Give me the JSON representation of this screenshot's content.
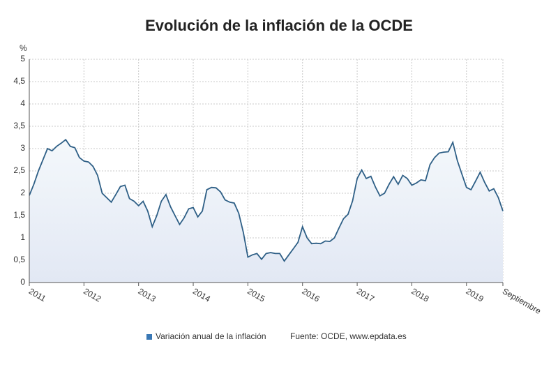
{
  "chart_data": {
    "type": "area",
    "title": "Evolución de la inflación de la OCDE",
    "y_unit": "%",
    "source": "Fuente: OCDE, www.epdata.es",
    "categories": [
      "2011",
      null,
      null,
      null,
      null,
      null,
      null,
      null,
      null,
      null,
      null,
      null,
      "2012",
      null,
      null,
      null,
      null,
      null,
      null,
      null,
      null,
      null,
      null,
      null,
      "2013",
      null,
      null,
      null,
      null,
      null,
      null,
      null,
      null,
      null,
      null,
      null,
      "2014",
      null,
      null,
      null,
      null,
      null,
      null,
      null,
      null,
      null,
      null,
      null,
      "2015",
      null,
      null,
      null,
      null,
      null,
      null,
      null,
      null,
      null,
      null,
      null,
      "2016",
      null,
      null,
      null,
      null,
      null,
      null,
      null,
      null,
      null,
      null,
      null,
      "2017",
      null,
      null,
      null,
      null,
      null,
      null,
      null,
      null,
      null,
      null,
      null,
      "2018",
      null,
      null,
      null,
      null,
      null,
      null,
      null,
      null,
      null,
      null,
      null,
      "2019",
      null,
      null,
      null,
      null,
      null,
      null,
      null,
      "Septiembre"
    ],
    "series": [
      {
        "name": "Variación anual de la inflación",
        "color": "#2e5f86",
        "legend_color": "#3a78b5",
        "values": [
          1.95,
          2.2,
          2.5,
          2.75,
          3.0,
          2.95,
          3.05,
          3.12,
          3.2,
          3.05,
          3.02,
          2.8,
          2.72,
          2.7,
          2.6,
          2.4,
          2.0,
          1.9,
          1.8,
          1.97,
          2.15,
          2.18,
          1.88,
          1.82,
          1.72,
          1.82,
          1.6,
          1.25,
          1.5,
          1.82,
          1.97,
          1.7,
          1.5,
          1.3,
          1.45,
          1.65,
          1.68,
          1.47,
          1.6,
          2.08,
          2.13,
          2.12,
          2.03,
          1.85,
          1.8,
          1.78,
          1.55,
          1.12,
          0.57,
          0.62,
          0.65,
          0.52,
          0.65,
          0.67,
          0.65,
          0.65,
          0.48,
          0.62,
          0.76,
          0.9,
          1.25,
          1.0,
          0.87,
          0.88,
          0.87,
          0.93,
          0.92,
          1.0,
          1.22,
          1.43,
          1.53,
          1.83,
          2.33,
          2.52,
          2.33,
          2.38,
          2.14,
          1.94,
          2.0,
          2.2,
          2.37,
          2.2,
          2.4,
          2.33,
          2.18,
          2.23,
          2.3,
          2.28,
          2.64,
          2.8,
          2.9,
          2.92,
          2.93,
          3.14,
          2.73,
          2.43,
          2.13,
          2.08,
          2.27,
          2.47,
          2.24,
          2.05,
          2.1,
          1.9,
          1.6
        ]
      }
    ],
    "ylim": [
      0,
      5
    ],
    "yticks": [
      0,
      {
        "value": 0.5,
        "label": "0,5"
      },
      1,
      {
        "value": 1.5,
        "label": "1,5"
      },
      2,
      {
        "value": 2.5,
        "label": "2,5"
      },
      3,
      {
        "value": 3.5,
        "label": "3,5"
      },
      4,
      {
        "value": 4.5,
        "label": "4,5"
      },
      5
    ],
    "grid": true
  }
}
